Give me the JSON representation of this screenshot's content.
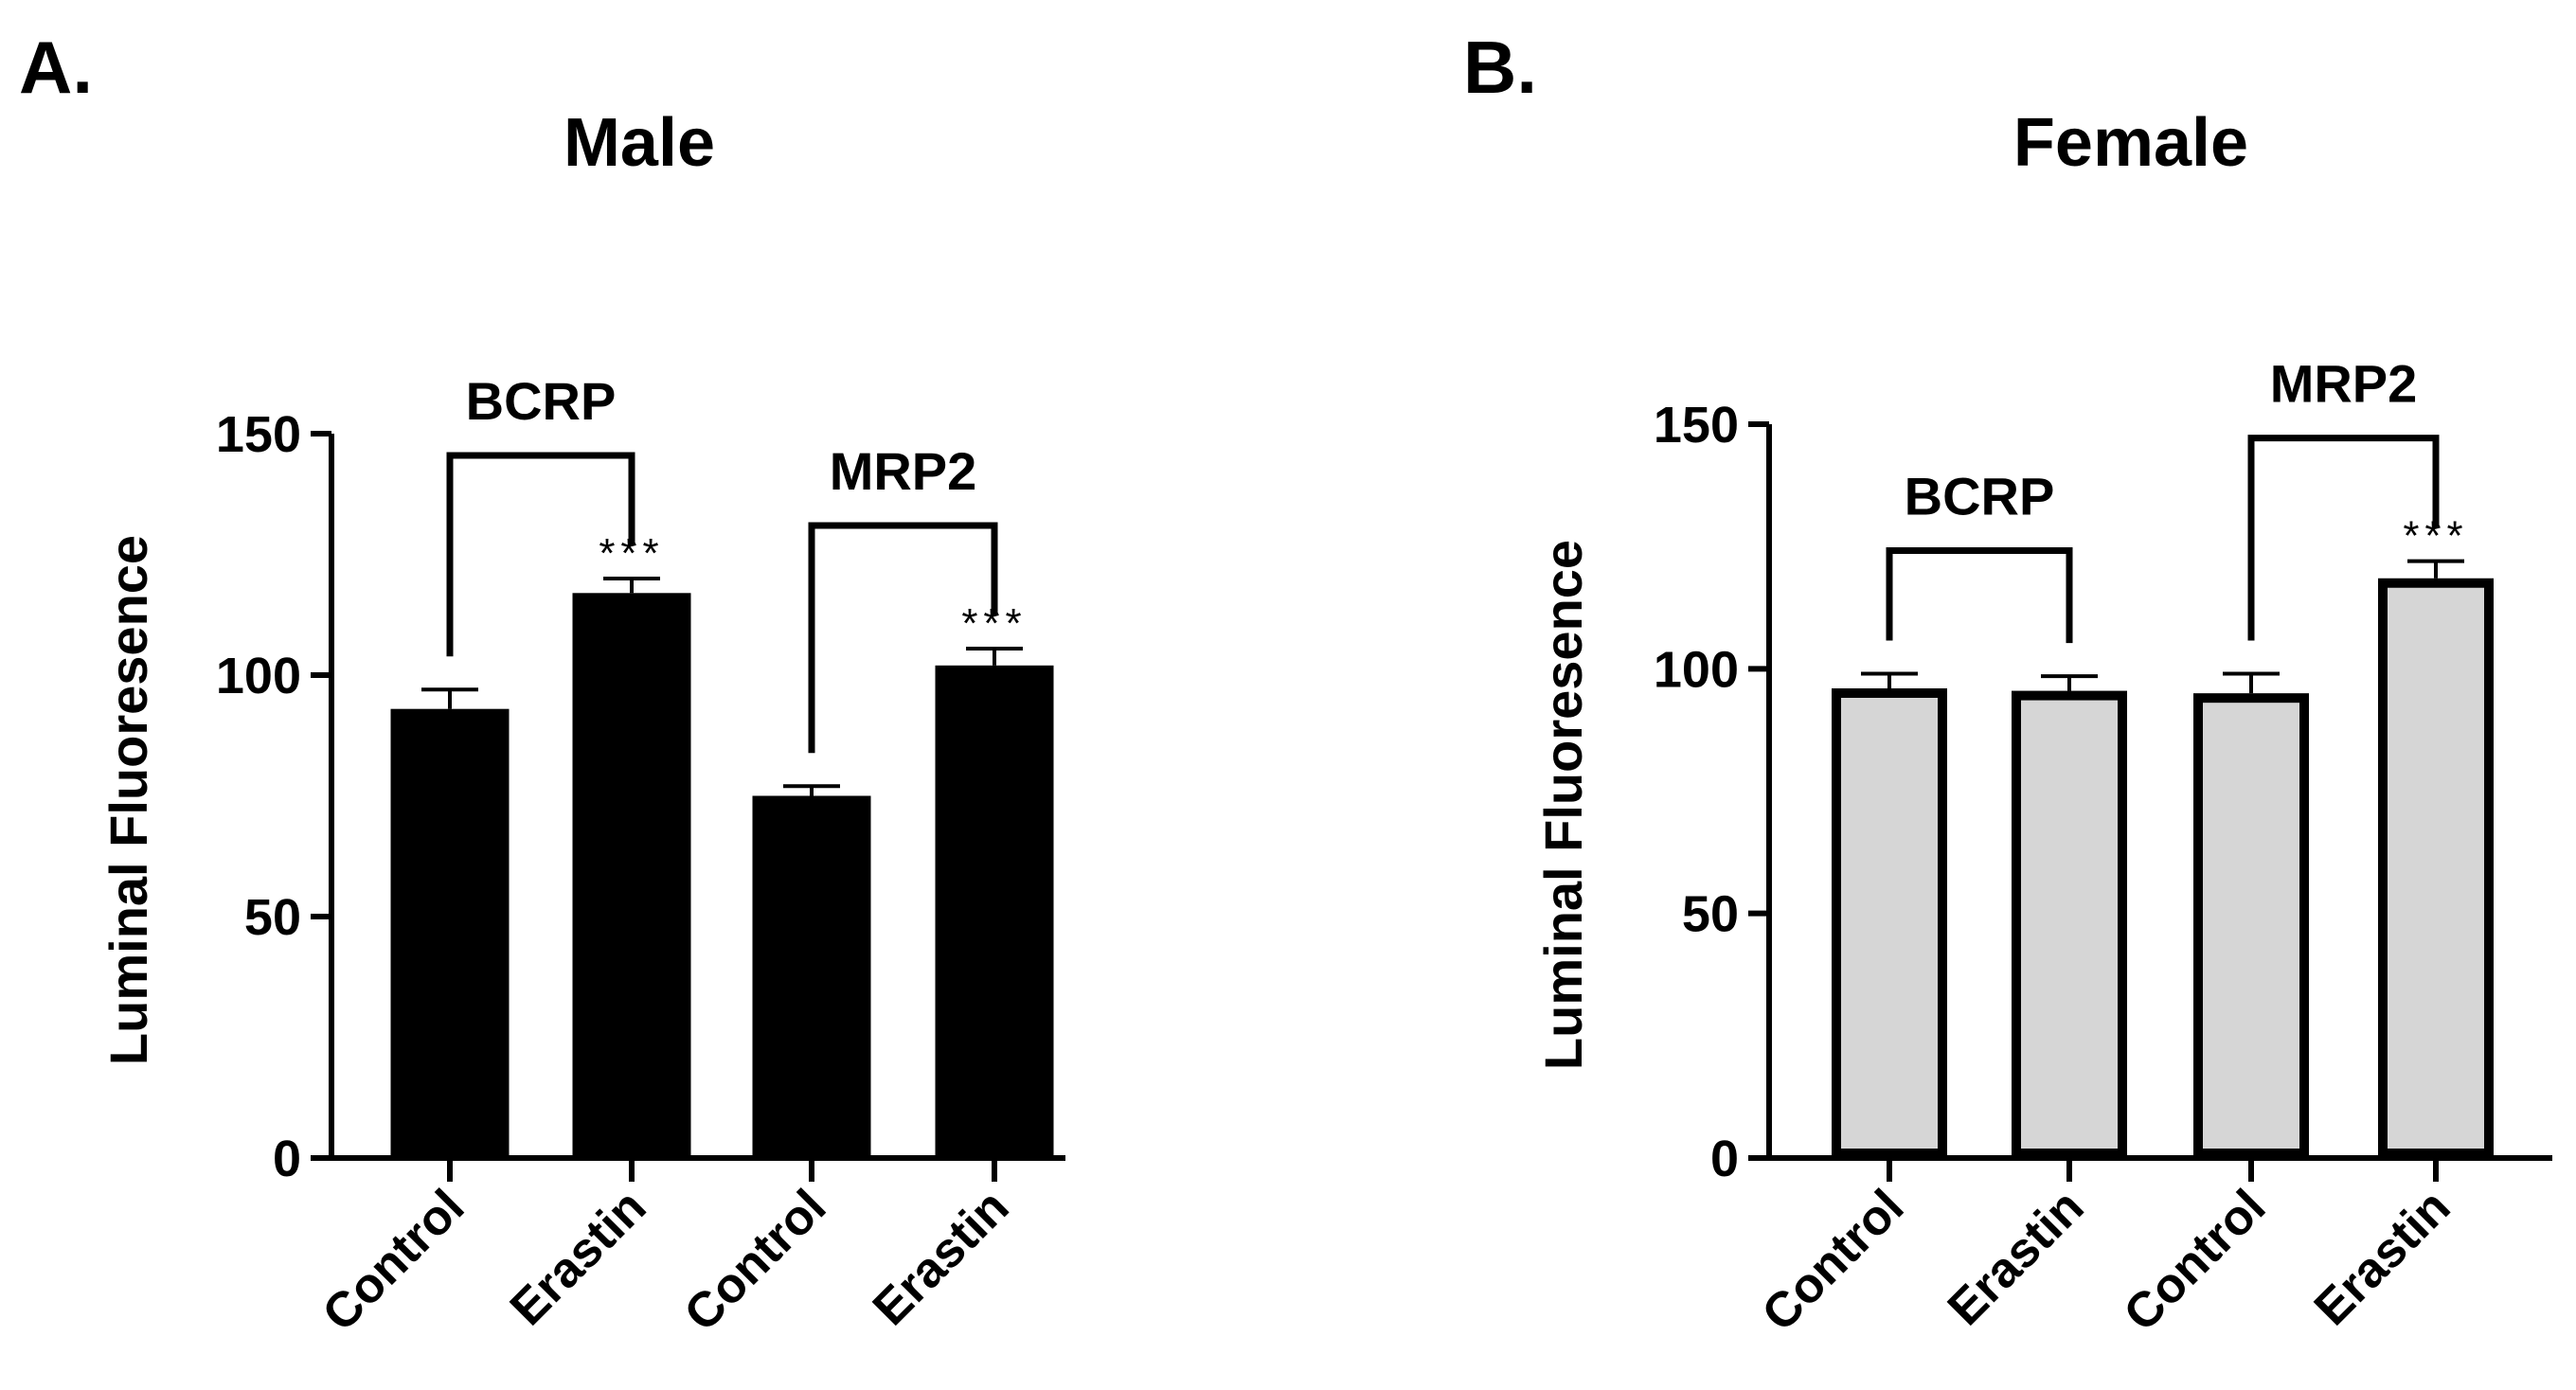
{
  "chart_data": [
    {
      "type": "bar",
      "panel_label": "A.",
      "title": "Male",
      "ylabel": "Luminal Fluoresence",
      "xlabel": "",
      "ylim": [
        0,
        150
      ],
      "yticks": [
        0,
        50,
        100,
        150
      ],
      "categories": [
        "Control",
        "Erastin",
        "Control",
        "Erastin"
      ],
      "values": [
        93,
        117,
        75,
        102
      ],
      "errors": [
        4,
        3,
        2,
        3.5
      ],
      "bar_fill": "#000000",
      "bar_stroke": "#000000",
      "groups": [
        {
          "label": "BCRP",
          "bars": [
            0,
            1
          ],
          "significance": "***",
          "sig_bar": 1
        },
        {
          "label": "MRP2",
          "bars": [
            2,
            3
          ],
          "significance": "***",
          "sig_bar": 3
        }
      ]
    },
    {
      "type": "bar",
      "panel_label": "B.",
      "title": "Female",
      "ylabel": "Luminal Fluoresence",
      "xlabel": "",
      "ylim": [
        0,
        150
      ],
      "yticks": [
        0,
        50,
        100,
        150
      ],
      "categories": [
        "Control",
        "Erastin",
        "Control",
        "Erastin"
      ],
      "values": [
        96,
        95.5,
        95,
        118.5
      ],
      "errors": [
        3,
        3,
        4,
        3.5
      ],
      "bar_fill": "#d6d6d6",
      "bar_stroke": "#000000",
      "groups": [
        {
          "label": "BCRP",
          "bars": [
            0,
            1
          ],
          "significance": "",
          "sig_bar": 1
        },
        {
          "label": "MRP2",
          "bars": [
            2,
            3
          ],
          "significance": "***",
          "sig_bar": 3
        }
      ]
    }
  ]
}
